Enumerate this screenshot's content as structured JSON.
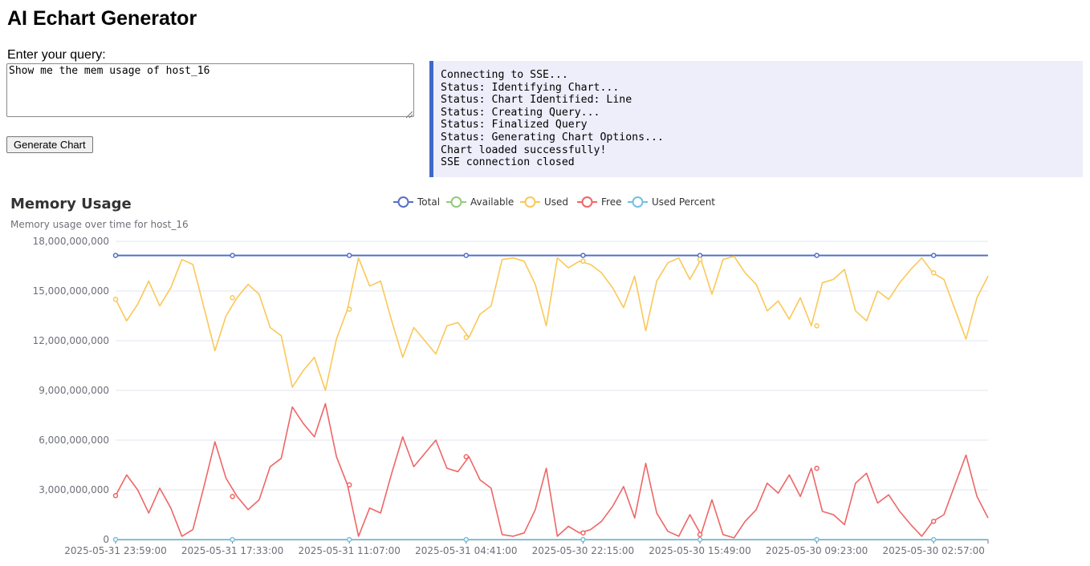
{
  "app": {
    "title": "AI Echart Generator"
  },
  "form": {
    "query_label": "Enter your query:",
    "query_value": "Show me the mem usage of host_16",
    "button_label": "Generate Chart"
  },
  "status": {
    "lines": [
      "Connecting to SSE...",
      "Status: Identifying Chart...",
      "Status: Chart Identified: Line",
      "Status: Creating Query...",
      "Status: Finalized Query",
      "Status: Generating Chart Options...",
      "Chart loaded successfully!",
      "SSE connection closed"
    ],
    "accent_color": "#3d69c9",
    "background_color": "#eeeefb"
  },
  "chart_data": {
    "type": "line",
    "title": "Memory Usage",
    "subtitle": "Memory usage over time for host_16",
    "legend_position": "top-center",
    "grid": true,
    "x_tick_labels": [
      "2025-05-31 23:59:00",
      "2025-05-31 17:33:00",
      "2025-05-31 11:07:00",
      "2025-05-31 04:41:00",
      "2025-05-30 22:15:00",
      "2025-05-30 15:49:00",
      "2025-05-30 09:23:00",
      "2025-05-30 02:57:00"
    ],
    "y_tick_labels": [
      "0",
      "3,000,000,000",
      "6,000,000,000",
      "9,000,000,000",
      "12,000,000,000",
      "15,000,000,000",
      "18,000,000,000"
    ],
    "ylim": [
      0,
      18000000000
    ],
    "y_ticks": [
      0,
      3000000000,
      6000000000,
      9000000000,
      12000000000,
      15000000000,
      18000000000
    ],
    "series": [
      {
        "name": "Total",
        "color": "#5470c6",
        "values": [
          17150000000,
          17150000000,
          17150000000,
          17150000000,
          17150000000,
          17150000000,
          17150000000,
          17150000000,
          17150000000,
          17150000000,
          17150000000,
          17150000000,
          17150000000,
          17150000000,
          17150000000,
          17150000000,
          17150000000,
          17150000000,
          17150000000,
          17150000000,
          17150000000,
          17150000000,
          17150000000,
          17150000000,
          17150000000,
          17150000000,
          17150000000,
          17150000000,
          17150000000,
          17150000000,
          17150000000,
          17150000000,
          17150000000,
          17150000000,
          17150000000,
          17150000000,
          17150000000,
          17150000000,
          17150000000,
          17150000000,
          17150000000,
          17150000000,
          17150000000,
          17150000000,
          17150000000,
          17150000000,
          17150000000,
          17150000000,
          17150000000,
          17150000000,
          17150000000,
          17150000000,
          17150000000,
          17150000000,
          17150000000,
          17150000000,
          17150000000,
          17150000000,
          17150000000,
          17150000000,
          17150000000,
          17150000000,
          17150000000,
          17150000000,
          17150000000,
          17150000000,
          17150000000,
          17150000000,
          17150000000,
          17150000000,
          17150000000,
          17150000000,
          17150000000,
          17150000000,
          17150000000,
          17150000000,
          17150000000,
          17150000000,
          17150000000,
          17150000000
        ]
      },
      {
        "name": "Available",
        "color": "#91cc75",
        "values": []
      },
      {
        "name": "Used",
        "color": "#fac858",
        "values": [
          14500000000,
          13200000000,
          14200000000,
          15600000000,
          14100000000,
          15200000000,
          16900000000,
          16600000000,
          14000000000,
          11400000000,
          13500000000,
          14600000000,
          15400000000,
          14800000000,
          12800000000,
          12300000000,
          9200000000,
          10200000000,
          11000000000,
          9000000000,
          12100000000,
          13900000000,
          17000000000,
          15300000000,
          15600000000,
          13200000000,
          11000000000,
          12800000000,
          12000000000,
          11200000000,
          12900000000,
          13100000000,
          12200000000,
          13600000000,
          14100000000,
          16900000000,
          17000000000,
          16800000000,
          15400000000,
          12900000000,
          17000000000,
          16400000000,
          16800000000,
          16600000000,
          16100000000,
          15200000000,
          14000000000,
          15900000000,
          12600000000,
          15600000000,
          16700000000,
          17000000000,
          15700000000,
          16900000000,
          14800000000,
          16900000000,
          17100000000,
          16100000000,
          15400000000,
          13800000000,
          14400000000,
          13300000000,
          14600000000,
          12900000000,
          15500000000,
          15700000000,
          16300000000,
          13800000000,
          13200000000,
          15000000000,
          14500000000,
          15500000000,
          16300000000,
          17000000000,
          16100000000,
          15700000000,
          13900000000,
          12100000000,
          14600000000,
          15900000000
        ]
      },
      {
        "name": "Free",
        "color": "#ee6666",
        "values": [
          2650000000,
          3900000000,
          3000000000,
          1600000000,
          3100000000,
          1900000000,
          200000000,
          600000000,
          3200000000,
          5900000000,
          3700000000,
          2600000000,
          1800000000,
          2400000000,
          4400000000,
          4900000000,
          8000000000,
          7000000000,
          6200000000,
          8200000000,
          5000000000,
          3300000000,
          200000000,
          1900000000,
          1600000000,
          4000000000,
          6200000000,
          4400000000,
          5200000000,
          6000000000,
          4300000000,
          4100000000,
          5000000000,
          3600000000,
          3100000000,
          300000000,
          200000000,
          400000000,
          1800000000,
          4300000000,
          200000000,
          800000000,
          400000000,
          600000000,
          1100000000,
          2000000000,
          3200000000,
          1300000000,
          4600000000,
          1600000000,
          500000000,
          200000000,
          1500000000,
          300000000,
          2400000000,
          300000000,
          100000000,
          1100000000,
          1800000000,
          3400000000,
          2800000000,
          3900000000,
          2600000000,
          4300000000,
          1700000000,
          1500000000,
          900000000,
          3400000000,
          4000000000,
          2200000000,
          2700000000,
          1700000000,
          900000000,
          200000000,
          1100000000,
          1500000000,
          3300000000,
          5100000000,
          2600000000,
          1300000000
        ]
      },
      {
        "name": "Used Percent",
        "color": "#73c0de",
        "values": [
          85,
          78,
          83,
          91,
          82,
          89,
          99,
          97,
          82,
          66,
          79,
          85,
          90,
          86,
          75,
          72,
          54,
          59,
          64,
          52,
          71,
          81,
          99,
          89,
          91,
          77,
          64,
          75,
          70,
          65,
          75,
          76,
          71,
          79,
          82,
          99,
          99,
          98,
          90,
          75,
          99,
          96,
          98,
          97,
          94,
          89,
          82,
          93,
          73,
          91,
          97,
          99,
          92,
          99,
          86,
          99,
          100,
          94,
          90,
          80,
          84,
          78,
          85,
          75,
          90,
          92,
          95,
          80,
          77,
          87,
          85,
          90,
          95,
          99,
          94,
          92,
          81,
          71,
          85,
          93
        ]
      }
    ]
  }
}
